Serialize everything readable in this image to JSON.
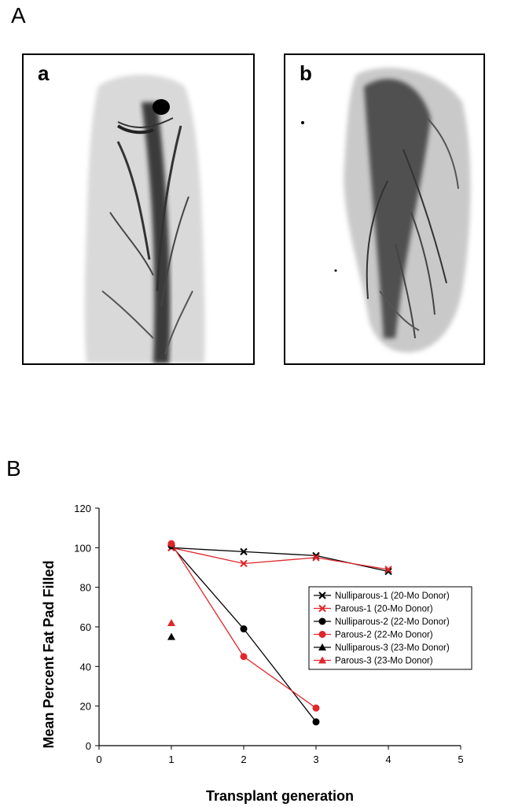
{
  "figure": {
    "panel_a_label": "A",
    "panel_b_label": "B",
    "image_a_label": "a",
    "image_b_label": "b"
  },
  "chart_data": {
    "type": "line",
    "xlabel": "Transplant generation",
    "ylabel": "Mean Percent Fat Pad Filled",
    "xlim": [
      0,
      5
    ],
    "ylim": [
      0,
      120
    ],
    "xticks": [
      0,
      1,
      2,
      3,
      4,
      5
    ],
    "yticks": [
      0,
      20,
      40,
      60,
      80,
      100,
      120
    ],
    "grid": false,
    "legend_position": "right",
    "series": [
      {
        "name": "Nulliparous-1 (20-Mo Donor)",
        "color": "#000000",
        "marker": "x",
        "x": [
          1,
          2,
          3,
          4
        ],
        "y": [
          100,
          98,
          96,
          88
        ]
      },
      {
        "name": "Parous-1 (20-Mo Donor)",
        "color": "#e0262b",
        "marker": "x",
        "x": [
          1,
          2,
          3,
          4
        ],
        "y": [
          100,
          92,
          95,
          89
        ]
      },
      {
        "name": "Nulliparous-2 (22-Mo Donor)",
        "color": "#000000",
        "marker": "circle",
        "x": [
          1,
          2,
          3
        ],
        "y": [
          101,
          59,
          12
        ]
      },
      {
        "name": "Parous-2 (22-Mo Donor)",
        "color": "#e0262b",
        "marker": "circle",
        "x": [
          1,
          2,
          3
        ],
        "y": [
          102,
          45,
          19
        ]
      },
      {
        "name": "Nulliparous-3 (23-Mo Donor)",
        "color": "#000000",
        "marker": "triangle",
        "x": [
          1
        ],
        "y": [
          55
        ]
      },
      {
        "name": "Parous-3 (23-Mo Donor)",
        "color": "#e0262b",
        "marker": "triangle",
        "x": [
          1
        ],
        "y": [
          62
        ]
      }
    ]
  }
}
